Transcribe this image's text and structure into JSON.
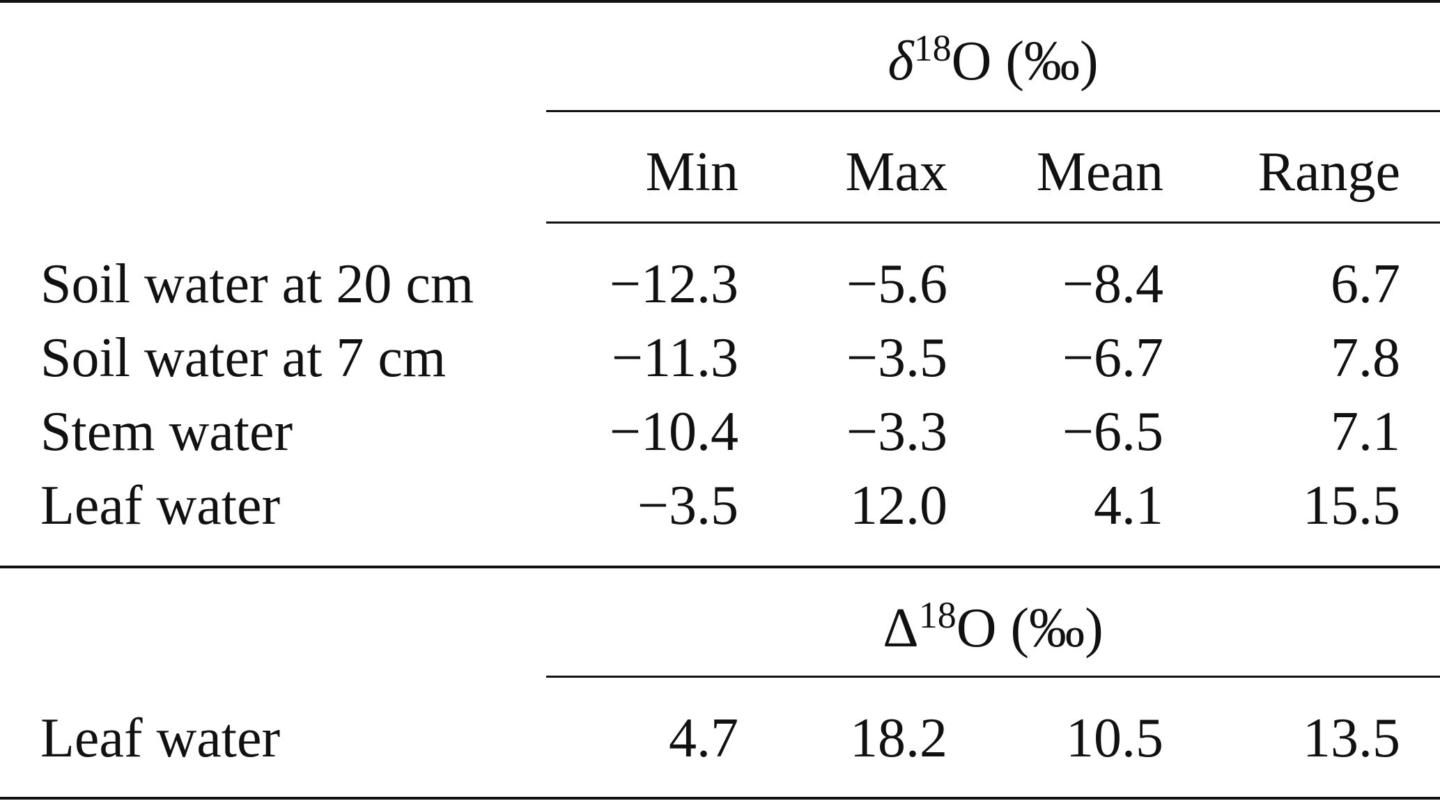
{
  "table": {
    "group1": {
      "symbol": "δ",
      "superscript": "18",
      "suffix": "O (‰)"
    },
    "group2": {
      "symbol": "Δ",
      "superscript": "18",
      "suffix": "O (‰)"
    },
    "columns": [
      "Min",
      "Max",
      "Mean",
      "Range"
    ],
    "rows": [
      {
        "label": "Soil water at 20 cm",
        "values": [
          "−12.3",
          "−5.6",
          "−8.4",
          "6.7"
        ]
      },
      {
        "label": "Soil water at 7 cm",
        "values": [
          "−11.3",
          "−3.5",
          "−6.7",
          "7.8"
        ]
      },
      {
        "label": "Stem water",
        "values": [
          "−10.4",
          "−3.3",
          "−6.5",
          "7.1"
        ]
      },
      {
        "label": "Leaf water",
        "values": [
          "−3.5",
          "12.0",
          "4.1",
          "15.5"
        ]
      }
    ],
    "rows2": [
      {
        "label": "Leaf water",
        "values": [
          "4.7",
          "18.2",
          "10.5",
          "13.5"
        ]
      }
    ]
  }
}
